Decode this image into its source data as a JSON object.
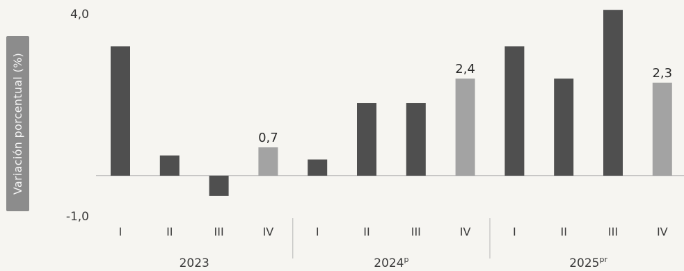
{
  "chart_data": {
    "type": "bar",
    "ylabel": "Variación porcentual (%)",
    "ylim": [
      -1.0,
      4.0
    ],
    "yticks": [
      "4,0",
      "-1,0"
    ],
    "grid": false,
    "legend": "none",
    "groups": [
      {
        "year": "2023",
        "superscript": ""
      },
      {
        "year": "2024",
        "superscript": "p"
      },
      {
        "year": "2025",
        "superscript": "pr"
      }
    ],
    "categories": [
      "I",
      "II",
      "III",
      "IV",
      "I",
      "II",
      "III",
      "IV",
      "I",
      "II",
      "III",
      "IV"
    ],
    "values": [
      3.2,
      0.5,
      -0.5,
      0.7,
      0.4,
      1.8,
      1.8,
      2.4,
      3.2,
      2.4,
      4.1,
      2.3
    ],
    "data_labels": [
      "",
      "",
      "",
      "0,7",
      "",
      "",
      "",
      "2,4",
      "",
      "",
      "",
      "2,3"
    ],
    "colors": {
      "quarter": "#4f4f4f",
      "quarter_iv": "#a3a3a3",
      "ylabel_bg": "#8c8c8c",
      "text": "#3a3a3a",
      "baseline": "#b5b5b5"
    }
  }
}
